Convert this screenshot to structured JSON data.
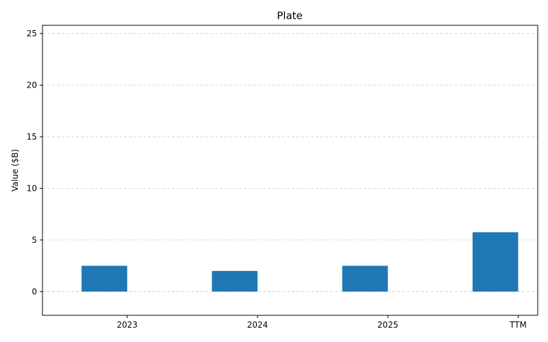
{
  "chart_data": {
    "type": "bar",
    "title": "Plate",
    "xlabel": "",
    "ylabel": "Value ($B)",
    "categories": [
      "2023",
      "2024",
      "2025",
      "TTM"
    ],
    "values": [
      2.5,
      2.0,
      2.5,
      5.75
    ],
    "ylim": [
      -2.3,
      25.8
    ],
    "yticks": [
      0,
      5,
      10,
      15,
      20,
      25
    ],
    "grid": true,
    "bar_color": "#1f77b4",
    "grid_color": "#cccccc"
  }
}
